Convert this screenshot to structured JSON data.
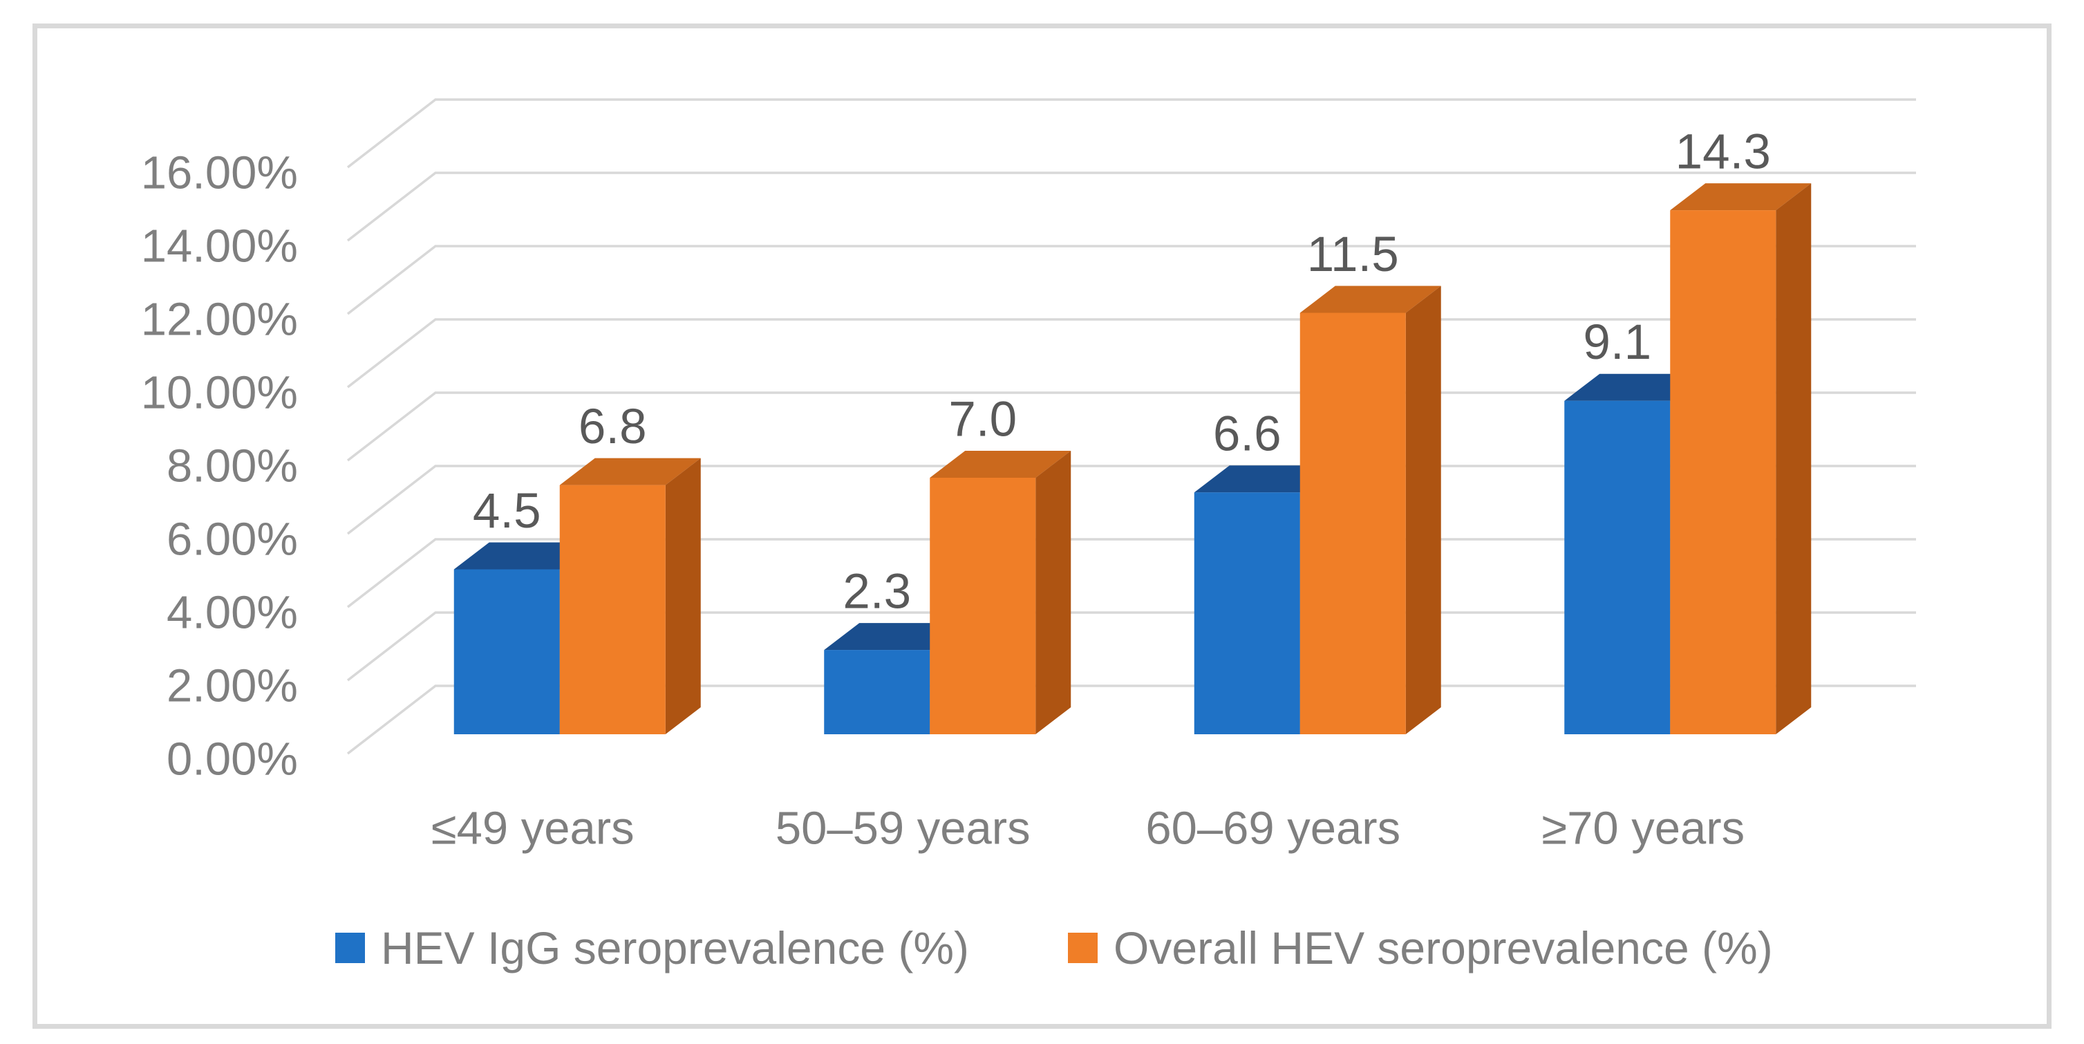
{
  "figure": {
    "background_color": "#FFFFFF",
    "border_color": "#D9D9D9"
  },
  "chart_data": {
    "type": "bar",
    "style": "3d-clustered-column",
    "title": "",
    "xlabel": "",
    "ylabel": "",
    "categories": [
      "≤49 years",
      "50–59 years",
      "60–69 years",
      "≥70 years"
    ],
    "series": [
      {
        "name": "HEV IgG seroprevalence (%)",
        "values": [
          4.5,
          2.3,
          6.6,
          9.1
        ],
        "value_labels": [
          "4.5",
          "2.3",
          "6.6",
          "9.1"
        ],
        "colors": {
          "front": "#1F72C6",
          "top": "#1A4E8E",
          "side": "#174C86"
        }
      },
      {
        "name": "Overall HEV seroprevalence (%)",
        "values": [
          6.8,
          7.0,
          11.5,
          14.3
        ],
        "value_labels": [
          "6.8",
          "7.0",
          "11.5",
          "14.3"
        ],
        "colors": {
          "front": "#F07E27",
          "top": "#CB691D",
          "side": "#AE5412"
        }
      }
    ],
    "y_axis": {
      "min": 0,
      "max": 16,
      "step": 2,
      "unit": "%",
      "tick_labels": [
        "0.00%",
        "2.00%",
        "4.00%",
        "6.00%",
        "8.00%",
        "10.00%",
        "12.00%",
        "14.00%",
        "16.00%"
      ],
      "grid": true
    },
    "legend": {
      "position": "bottom"
    },
    "colors": {
      "axis_text": "#7F7F7F",
      "category_text": "#7F7F7F",
      "data_label_text": "#595959",
      "gridline": "#D8D8D8"
    }
  }
}
